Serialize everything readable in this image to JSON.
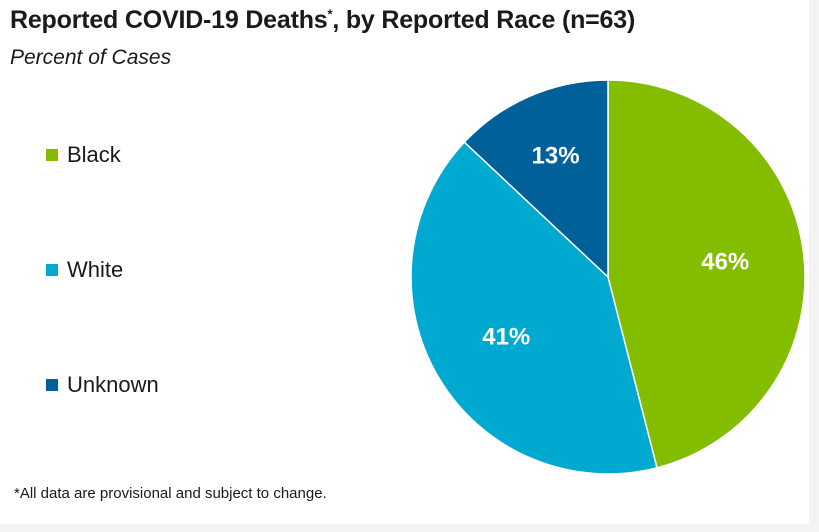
{
  "chart_data": {
    "type": "pie",
    "title": "Reported COVID-19 Deaths",
    "title_mark": "*",
    "title_rest": ", by Reported Race (n=63)",
    "subtitle": "Percent of Cases",
    "slices": [
      {
        "name": "Black",
        "value": 46,
        "label": "46%",
        "color": "#84bd00"
      },
      {
        "name": "White",
        "value": 41,
        "label": "41%",
        "color": "#00a9d0"
      },
      {
        "name": "Unknown",
        "value": 13,
        "label": "13%",
        "color": "#00609a"
      }
    ],
    "legend_placement": "left",
    "footnote": "*All data are provisional and subject to change."
  }
}
